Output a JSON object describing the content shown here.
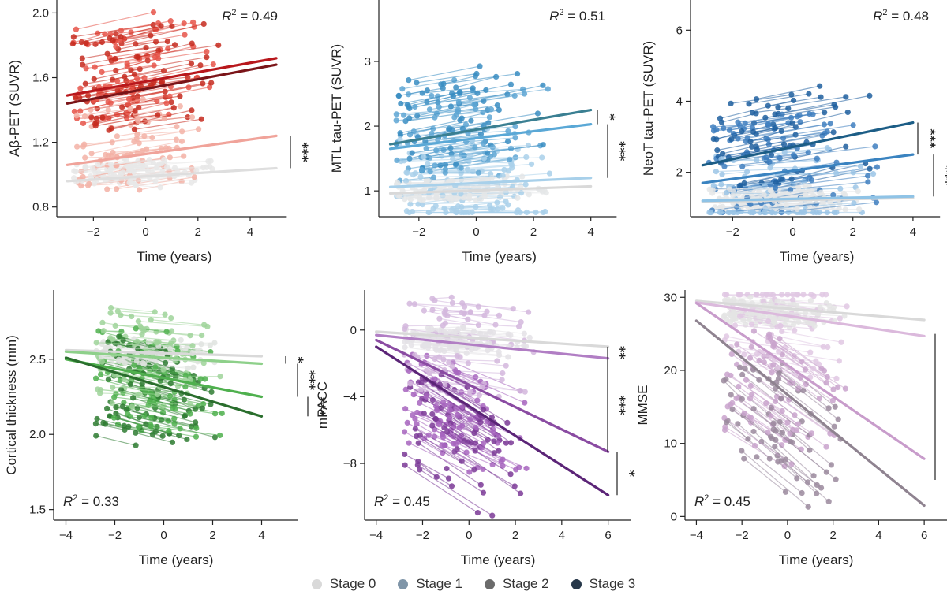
{
  "legend": {
    "items": [
      {
        "label": "Stage 0",
        "color": "#d9d9d9"
      },
      {
        "label": "Stage 1",
        "color": "#7f95a8"
      },
      {
        "label": "Stage 2",
        "color": "#6b6b6b"
      },
      {
        "label": "Stage 3",
        "color": "#27384a"
      }
    ]
  },
  "chart_data": [
    {
      "type": "scatter",
      "ylabel": "Aβ-PET (SUVR)",
      "xlabel": "Time (years)",
      "xlim": [
        -3.4,
        5.6
      ],
      "ylim": [
        0.74,
        2.08
      ],
      "xticks": [
        -2,
        0,
        2,
        4
      ],
      "xtick_labels": [
        "−2",
        "0",
        "2",
        "4"
      ],
      "yticks": [
        0.8,
        1.2,
        1.6,
        2.0
      ],
      "ytick_labels": [
        "0.8",
        "1.2",
        "1.6",
        "2.0"
      ],
      "r2_label": "R",
      "r2_sup": "2",
      "r2_value": " = 0.49",
      "r2_position": "top-right",
      "point_colors": [
        "#e8e8e8",
        "#f3b2a6",
        "#e6554a",
        "#c62a1e"
      ],
      "series": [
        {
          "stage": 0,
          "color": "#dedede",
          "x": [
            -3,
            5
          ],
          "y": [
            0.96,
            1.04
          ]
        },
        {
          "stage": 1,
          "color": "#f0a39a",
          "x": [
            -3,
            5
          ],
          "y": [
            1.06,
            1.24
          ]
        },
        {
          "stage": 2,
          "color": "#b8171c",
          "x": [
            -3,
            5
          ],
          "y": [
            1.49,
            1.72
          ]
        },
        {
          "stage": 3,
          "color": "#7a1418",
          "x": [
            -3,
            5
          ],
          "y": [
            1.44,
            1.68
          ]
        }
      ],
      "significance": [
        {
          "label": "***",
          "y_range": [
            1.04,
            1.24
          ]
        }
      ]
    },
    {
      "type": "scatter",
      "ylabel": "MTL tau-PET (SUVR)",
      "xlabel": "Time (years)",
      "xlim": [
        -3.4,
        5.0
      ],
      "ylim": [
        0.6,
        3.95
      ],
      "xticks": [
        -2,
        0,
        2,
        4
      ],
      "xtick_labels": [
        "−2",
        "0",
        "2",
        "4"
      ],
      "yticks": [
        1,
        2,
        3
      ],
      "ytick_labels": [
        "1",
        "2",
        "3"
      ],
      "r2_label": "R",
      "r2_sup": "2",
      "r2_value": " = 0.51",
      "r2_position": "top-right",
      "point_colors": [
        "#e4e6e8",
        "#a9d0ea",
        "#5ea6d3",
        "#3a8dc2"
      ],
      "series": [
        {
          "stage": 0,
          "color": "#d9d9d9",
          "x": [
            -3,
            4
          ],
          "y": [
            0.96,
            1.07
          ]
        },
        {
          "stage": 1,
          "color": "#a8d0ea",
          "x": [
            -3,
            4
          ],
          "y": [
            1.06,
            1.2
          ]
        },
        {
          "stage": 2,
          "color": "#5aa8d6",
          "x": [
            -3,
            4
          ],
          "y": [
            1.65,
            2.03
          ]
        },
        {
          "stage": 3,
          "color": "#3a7f92",
          "x": [
            -3,
            4
          ],
          "y": [
            1.72,
            2.25
          ]
        }
      ],
      "significance": [
        {
          "label": "*",
          "y_range": [
            2.03,
            2.25
          ]
        },
        {
          "label": "***",
          "y_range": [
            1.2,
            2.03
          ]
        }
      ]
    },
    {
      "type": "scatter",
      "ylabel": "NeoT tau-PET (SUVR)",
      "xlabel": "Time (years)",
      "xlim": [
        -3.4,
        5.0
      ],
      "ylim": [
        0.75,
        6.85
      ],
      "xticks": [
        -2,
        0,
        2,
        4
      ],
      "xtick_labels": [
        "−2",
        "0",
        "2",
        "4"
      ],
      "yticks": [
        2,
        4,
        6
      ],
      "ytick_labels": [
        "2",
        "4",
        "6"
      ],
      "r2_label": "R",
      "r2_sup": "2",
      "r2_value": " = 0.48",
      "r2_position": "top-right",
      "point_colors": [
        "#e4e6e8",
        "#9cc6e6",
        "#3f7fbf",
        "#1f5f9f"
      ],
      "series": [
        {
          "stage": 0,
          "color": "#d9d9d9",
          "x": [
            -3,
            4
          ],
          "y": [
            1.17,
            1.28
          ]
        },
        {
          "stage": 1,
          "color": "#8fc3e6",
          "x": [
            -3,
            4
          ],
          "y": [
            1.2,
            1.32
          ]
        },
        {
          "stage": 2,
          "color": "#3a83c0",
          "x": [
            -3,
            4
          ],
          "y": [
            1.7,
            2.5
          ]
        },
        {
          "stage": 3,
          "color": "#1c5d86",
          "x": [
            -3,
            4
          ],
          "y": [
            2.2,
            3.4
          ]
        }
      ],
      "significance": [
        {
          "label": "***",
          "y_range": [
            2.5,
            3.4
          ]
        },
        {
          "label": "***",
          "y_range": [
            1.32,
            2.5
          ]
        }
      ]
    },
    {
      "type": "scatter",
      "ylabel": "Cortical thickness (mm)",
      "xlabel": "Time (years)",
      "xlim": [
        -4.5,
        5.5
      ],
      "ylim": [
        1.43,
        2.96
      ],
      "xticks": [
        -4,
        -2,
        0,
        2,
        4
      ],
      "xtick_labels": [
        "−4",
        "−2",
        "0",
        "2",
        "4"
      ],
      "yticks": [
        1.5,
        2.0,
        2.5
      ],
      "ytick_labels": [
        "1.5",
        "2.0",
        "2.5"
      ],
      "r2_label": "R",
      "r2_sup": "2",
      "r2_value": " = 0.33",
      "r2_position": "bottom-left",
      "point_colors": [
        "#dfe3df",
        "#9fd49a",
        "#4fb04e",
        "#2f7d33"
      ],
      "series": [
        {
          "stage": 0,
          "color": "#d9d9d9",
          "x": [
            -4,
            4
          ],
          "y": [
            2.56,
            2.52
          ]
        },
        {
          "stage": 1,
          "color": "#8ed08a",
          "x": [
            -4,
            4
          ],
          "y": [
            2.55,
            2.47
          ]
        },
        {
          "stage": 2,
          "color": "#4fb04e",
          "x": [
            -4,
            4
          ],
          "y": [
            2.5,
            2.25
          ]
        },
        {
          "stage": 3,
          "color": "#2a6e2d",
          "x": [
            -4,
            4
          ],
          "y": [
            2.51,
            2.12
          ]
        }
      ],
      "significance": [
        {
          "label": "*",
          "y_range": [
            2.47,
            2.52
          ]
        },
        {
          "label": "***",
          "y_range": [
            2.25,
            2.47
          ]
        },
        {
          "label": "***",
          "y_range": [
            2.12,
            2.25
          ]
        }
      ]
    },
    {
      "type": "scatter",
      "ylabel": "mPACC",
      "xlabel": "Time (years)",
      "xlim": [
        -4.5,
        7.0
      ],
      "ylim": [
        -11.4,
        2.4
      ],
      "xticks": [
        -4,
        -2,
        0,
        2,
        4,
        6
      ],
      "xtick_labels": [
        "−4",
        "−2",
        "0",
        "2",
        "4",
        "6"
      ],
      "yticks": [
        -8,
        -4,
        0
      ],
      "ytick_labels": [
        "−8",
        "−4",
        "0"
      ],
      "r2_label": "R",
      "r2_sup": "2",
      "r2_value": " = 0.45",
      "r2_position": "bottom-left",
      "point_colors": [
        "#e4e2e6",
        "#d3b7dd",
        "#a765be",
        "#7b3a97"
      ],
      "series": [
        {
          "stage": 0,
          "color": "#d9d9d9",
          "x": [
            -4,
            6
          ],
          "y": [
            -0.1,
            -1.0
          ]
        },
        {
          "stage": 1,
          "color": "#b17ec4",
          "x": [
            -4,
            6
          ],
          "y": [
            -0.3,
            -1.7
          ]
        },
        {
          "stage": 2,
          "color": "#8a4ba2",
          "x": [
            -4,
            6
          ],
          "y": [
            -0.6,
            -7.3
          ]
        },
        {
          "stage": 3,
          "color": "#5b2477",
          "x": [
            -4,
            6
          ],
          "y": [
            -1.0,
            -9.9
          ]
        }
      ],
      "significance": [
        {
          "label": "**",
          "y_range": [
            -1.7,
            -1.0
          ]
        },
        {
          "label": "***",
          "y_range": [
            -7.3,
            -1.7
          ]
        },
        {
          "label": "*",
          "y_range": [
            -9.9,
            -7.3
          ]
        }
      ]
    },
    {
      "type": "scatter",
      "ylabel": "MMSE",
      "xlabel": "Time (years)",
      "xlim": [
        -4.5,
        7.0
      ],
      "ylim": [
        -0.5,
        31.0
      ],
      "xticks": [
        -4,
        -2,
        0,
        2,
        4,
        6
      ],
      "xtick_labels": [
        "−4",
        "−2",
        "0",
        "2",
        "4",
        "6"
      ],
      "yticks": [
        0,
        10,
        20,
        30
      ],
      "ytick_labels": [
        "0",
        "10",
        "20",
        "30"
      ],
      "r2_label": "R",
      "r2_sup": "2",
      "r2_value": " = 0.45",
      "r2_position": "bottom-left",
      "point_colors": [
        "#e4e4e4",
        "#e0c8e3",
        "#c9a3cc",
        "#9b8a9e"
      ],
      "series": [
        {
          "stage": 0,
          "color": "#d9d9d9",
          "x": [
            -4,
            6
          ],
          "y": [
            29.5,
            26.9
          ]
        },
        {
          "stage": 1,
          "color": "#dbb9dc",
          "x": [
            -4,
            6
          ],
          "y": [
            29.3,
            24.7
          ]
        },
        {
          "stage": 2,
          "color": "#c89ccb",
          "x": [
            -4,
            6
          ],
          "y": [
            29.2,
            7.9
          ]
        },
        {
          "stage": 3,
          "color": "#8f8390",
          "x": [
            -4,
            6
          ],
          "y": [
            26.8,
            1.5
          ]
        }
      ],
      "significance": [
        {
          "label": "***",
          "y_range": [
            5,
            25
          ]
        }
      ]
    }
  ]
}
